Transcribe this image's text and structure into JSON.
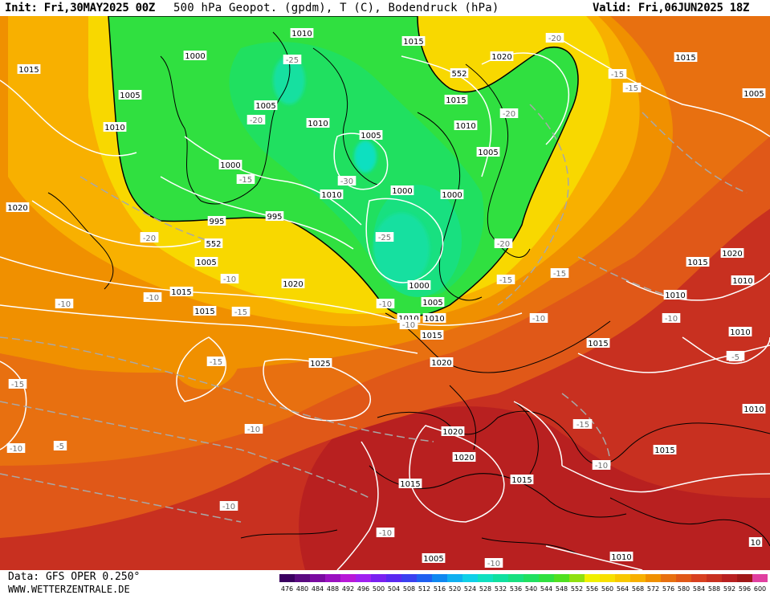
{
  "header": {
    "init": "Init: Fri,30MAY2025 00Z",
    "title": "500 hPa Geopot. (gpdm), T (C), Bodendruck (hPa)",
    "valid": "Valid: Fri,06JUN2025 18Z"
  },
  "footer": {
    "source": "Data: GFS OPER 0.250°",
    "website": "WWW.WETTERZENTRALE.DE"
  },
  "legend": {
    "ticks": [
      "476",
      "480",
      "484",
      "488",
      "492",
      "496",
      "500",
      "504",
      "508",
      "512",
      "516",
      "520",
      "524",
      "528",
      "532",
      "536",
      "540",
      "544",
      "548",
      "552",
      "556",
      "560",
      "564",
      "568",
      "572",
      "576",
      "580",
      "584",
      "588",
      "592",
      "596",
      "600"
    ],
    "colors": [
      "#3a0060",
      "#5a0a80",
      "#7a0aa0",
      "#9a10c0",
      "#b818d8",
      "#a020f0",
      "#7a20f0",
      "#5a28f0",
      "#3a40f0",
      "#2060f0",
      "#1088f0",
      "#10b0f0",
      "#10d0e8",
      "#10e0c0",
      "#10e0a0",
      "#18e080",
      "#20e060",
      "#30e040",
      "#50e020",
      "#90e010",
      "#f0f000",
      "#f8e000",
      "#f8c800",
      "#f8b000",
      "#f09000",
      "#e87010",
      "#e05818",
      "#d84020",
      "#c83020",
      "#b82020",
      "#a01818",
      "#e040a0"
    ]
  },
  "map": {
    "pressure_labels": [
      "1010",
      "1015",
      "1000",
      "1015",
      "1020",
      "552",
      "1015",
      "1005",
      "1015",
      "1005",
      "1010",
      "1005",
      "1010",
      "1005",
      "1010",
      "1000",
      "1005",
      "995",
      "1020",
      "1000",
      "1010",
      "1000",
      "995",
      "552",
      "1005",
      "1015",
      "1020",
      "1015",
      "1020",
      "1000",
      "1005",
      "1015",
      "1010",
      "1010",
      "1015",
      "1020",
      "1025",
      "1020",
      "1020",
      "1015",
      "1015",
      "1015",
      "1010",
      "1010",
      "1010",
      "1010",
      "1010",
      "1005",
      "10",
      "1015"
    ],
    "temperature_labels": [
      "-20",
      "-25",
      "-20",
      "-15",
      "-30",
      "-25",
      "-20",
      "-20",
      "-15",
      "-15",
      "-20",
      "-15",
      "-10",
      "-15",
      "-10",
      "-15",
      "-10",
      "-10",
      "-10",
      "-5",
      "-15",
      "-15",
      "-10",
      "-10",
      "-10",
      "-10",
      "-10",
      "-10",
      "-15",
      "-15",
      "-10",
      "-10",
      "-15",
      "-20",
      "-5"
    ]
  },
  "colors": {
    "ridge_red": "#c83020",
    "orange": "#e87010",
    "yellow": "#f8d800",
    "trough_green": "#30e040",
    "trough_teal": "#18e0a0",
    "isobar_white": "#ffffff",
    "coast_black": "#000000"
  }
}
